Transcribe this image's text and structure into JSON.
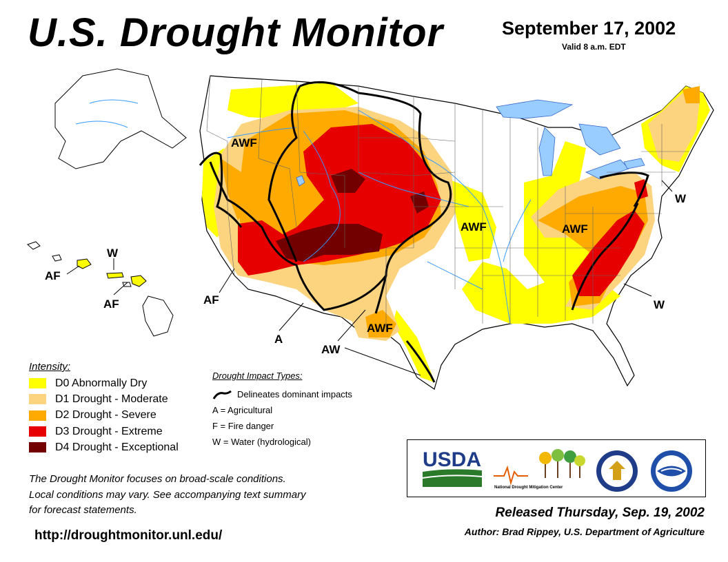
{
  "header": {
    "title": "U.S. Drought Monitor",
    "date": "September 17, 2002",
    "valid": "Valid 8 a.m. EDT"
  },
  "colors": {
    "D0": "#ffff00",
    "D1": "#fcd37f",
    "D2": "#ffaa00",
    "D3": "#e60000",
    "D4": "#730000",
    "water": "#3399ff",
    "lake": "#99ccff"
  },
  "map": {
    "impact_labels": [
      {
        "id": "awf-northwest",
        "text": "AWF"
      },
      {
        "id": "awf-plains",
        "text": "AWF"
      },
      {
        "id": "awf-ohio-valley",
        "text": "AWF"
      },
      {
        "id": "awf-texas",
        "text": "AWF"
      },
      {
        "id": "af-california",
        "text": "AF"
      },
      {
        "id": "a-southwest",
        "text": "A"
      },
      {
        "id": "aw-texas",
        "text": "AW"
      },
      {
        "id": "w-northeast",
        "text": "W"
      },
      {
        "id": "w-southeast",
        "text": "W"
      },
      {
        "id": "w-hawaii",
        "text": "W"
      },
      {
        "id": "af-hawaii-west",
        "text": "AF"
      },
      {
        "id": "af-hawaii-south",
        "text": "AF"
      }
    ]
  },
  "legend": {
    "title": "Intensity:",
    "items": [
      {
        "code": "D0",
        "label": "D0 Abnormally Dry",
        "color": "#ffff00"
      },
      {
        "code": "D1",
        "label": "D1 Drought - Moderate",
        "color": "#fcd37f"
      },
      {
        "code": "D2",
        "label": "D2 Drought - Severe",
        "color": "#ffaa00"
      },
      {
        "code": "D3",
        "label": "D3 Drought - Extreme",
        "color": "#e60000"
      },
      {
        "code": "D4",
        "label": "D4 Drought - Exceptional",
        "color": "#730000"
      }
    ]
  },
  "impact": {
    "title": "Drought Impact Types:",
    "delineates": "Delineates dominant impacts",
    "types": [
      "A = Agricultural",
      "F = Fire danger",
      "W = Water (hydrological)"
    ]
  },
  "disclaimer": [
    "The Drought Monitor focuses on broad-scale conditions.",
    "Local conditions may vary. See accompanying text summary",
    "for forecast statements."
  ],
  "url": "http://droughtmonitor.unl.edu/",
  "logos": {
    "usda": "USDA",
    "ndmc": "National Drought Mitigation Center"
  },
  "footer": {
    "released": "Released Thursday, Sep. 19, 2002",
    "author": "Author: Brad Rippey, U.S. Department of Agriculture"
  }
}
